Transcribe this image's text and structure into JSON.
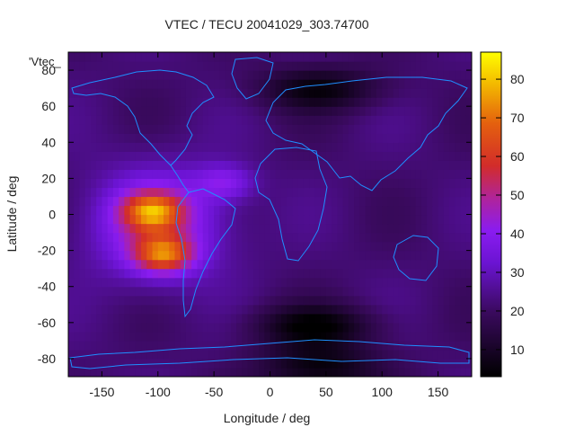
{
  "chart_data": {
    "type": "heatmap",
    "title": "VTEC / TECU 20041029_303.74700",
    "xlabel": "Longitude / deg",
    "ylabel": "Latitude / deg",
    "legend_key": "'Vtec_",
    "xlim": [
      -180,
      180
    ],
    "ylim": [
      -90,
      90
    ],
    "xticks": [
      -150,
      -100,
      -50,
      0,
      50,
      100,
      150
    ],
    "yticks": [
      -80,
      -60,
      -40,
      -20,
      0,
      20,
      40,
      60,
      80
    ],
    "colorbar": {
      "range": [
        3,
        87
      ],
      "ticks": [
        10,
        20,
        30,
        40,
        50,
        60,
        70,
        80
      ]
    },
    "peak_regions": [
      {
        "lon": -105,
        "lat": 2,
        "vtec": 84
      },
      {
        "lon": -95,
        "lat": -22,
        "vtec": 86
      },
      {
        "lon": -40,
        "lat": 18,
        "vtec": 50
      }
    ],
    "minimum_regions": [
      {
        "lon": 45,
        "lat": 70,
        "vtec": 6
      },
      {
        "lon": 40,
        "lat": -62,
        "vtec": 4
      },
      {
        "lon": 45,
        "lat": -85,
        "vtec": 5
      }
    ],
    "background_vtec": 22,
    "overlay": "coastlines"
  }
}
